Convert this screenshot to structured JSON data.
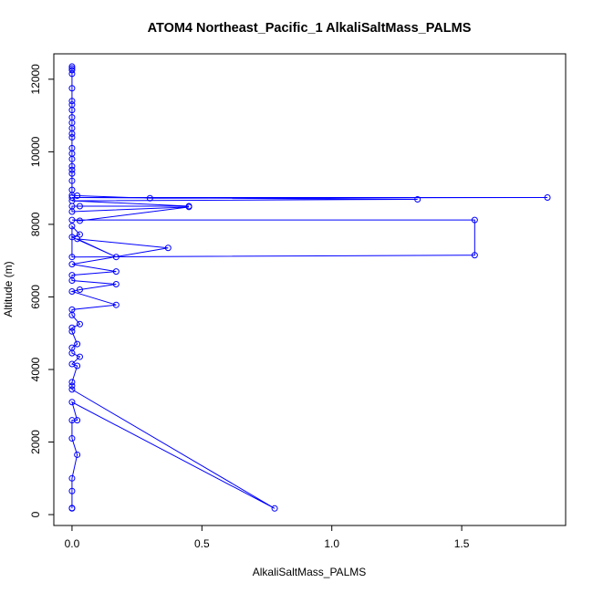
{
  "chart_data": {
    "type": "line",
    "title": "ATOM4 Northeast_Pacific_1 AlkaliSaltMass_PALMS",
    "xlabel": "AlkaliSaltMass_PALMS",
    "ylabel": "Altitude (m)",
    "xlim": [
      -0.07,
      1.9
    ],
    "ylim": [
      -300,
      12700
    ],
    "xticks": [
      0.0,
      0.5,
      1.0,
      1.5
    ],
    "xtick_labels": [
      "0.0",
      "0.5",
      "1.0",
      "1.5"
    ],
    "yticks": [
      0,
      2000,
      4000,
      6000,
      8000,
      10000,
      12000
    ],
    "ytick_labels": [
      "0",
      "2000",
      "4000",
      "6000",
      "8000",
      "10000",
      "12000"
    ],
    "grid": false,
    "legend": "none",
    "series": [
      {
        "color": "#0000ff",
        "marker": "open-circle",
        "points": [
          [
            0.0,
            12350
          ],
          [
            0.0,
            12300
          ],
          [
            0.0,
            12250
          ],
          [
            0.0,
            12150
          ],
          [
            0.0,
            11750
          ],
          [
            0.0,
            11400
          ],
          [
            0.0,
            11300
          ],
          [
            0.0,
            11150
          ],
          [
            0.0,
            10950
          ],
          [
            0.0,
            10800
          ],
          [
            0.0,
            10650
          ],
          [
            0.0,
            10500
          ],
          [
            0.0,
            10400
          ],
          [
            0.0,
            10100
          ],
          [
            0.0,
            9950
          ],
          [
            0.0,
            9800
          ],
          [
            0.0,
            9600
          ],
          [
            0.0,
            9500
          ],
          [
            0.0,
            9400
          ],
          [
            0.0,
            9200
          ],
          [
            0.0,
            8950
          ],
          [
            0.0,
            8800
          ],
          [
            0.02,
            8790
          ],
          [
            0.3,
            8720
          ],
          [
            1.83,
            8740
          ],
          [
            0.0,
            8740
          ],
          [
            1.33,
            8690
          ],
          [
            0.0,
            8650
          ],
          [
            0.45,
            8500
          ],
          [
            0.03,
            8500
          ],
          [
            0.0,
            8500
          ],
          [
            0.0,
            8350
          ],
          [
            0.45,
            8480
          ],
          [
            0.03,
            8100
          ],
          [
            0.0,
            8120
          ],
          [
            1.55,
            8120
          ],
          [
            1.55,
            7150
          ],
          [
            0.0,
            7100
          ],
          [
            0.0,
            7950
          ],
          [
            0.03,
            7720
          ],
          [
            0.0,
            7650
          ],
          [
            0.17,
            7100
          ],
          [
            0.02,
            7600
          ],
          [
            0.37,
            7350
          ],
          [
            0.0,
            6900
          ],
          [
            0.17,
            6700
          ],
          [
            0.0,
            6600
          ],
          [
            0.0,
            6450
          ],
          [
            0.17,
            6350
          ],
          [
            0.03,
            6200
          ],
          [
            0.0,
            6150
          ],
          [
            0.17,
            5780
          ],
          [
            0.0,
            5650
          ],
          [
            0.0,
            5500
          ],
          [
            0.03,
            5250
          ],
          [
            0.0,
            5150
          ],
          [
            0.0,
            5050
          ],
          [
            0.02,
            4700
          ],
          [
            0.0,
            4600
          ],
          [
            0.0,
            4450
          ],
          [
            0.03,
            4350
          ],
          [
            0.0,
            4150
          ],
          [
            0.02,
            4100
          ],
          [
            0.0,
            3650
          ],
          [
            0.0,
            3550
          ],
          [
            0.0,
            3450
          ],
          [
            0.78,
            170
          ],
          [
            0.0,
            3100
          ],
          [
            0.02,
            2600
          ],
          [
            0.0,
            2600
          ],
          [
            0.0,
            2100
          ],
          [
            0.02,
            1650
          ],
          [
            0.0,
            1000
          ],
          [
            0.0,
            650
          ],
          [
            0.0,
            180
          ],
          [
            0.0,
            170
          ]
        ]
      }
    ]
  }
}
